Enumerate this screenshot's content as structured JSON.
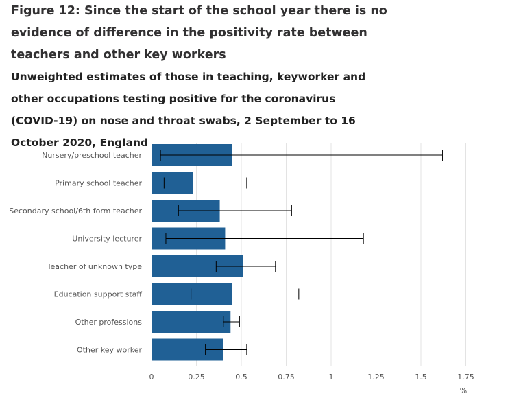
{
  "title": "Figure 12: Since the start of the school year there is no evidence of difference in the positivity rate between teachers and other key workers",
  "subtitle": "Unweighted estimates of those in teaching, keyworker and other occupations testing positive for the coronavirus (COVID-19) on nose and throat swabs, 2 September to 16 October 2020, England",
  "chart_data": {
    "type": "bar",
    "orientation": "horizontal",
    "categories": [
      "Nursery/preschool teacher",
      "Primary school teacher",
      "Secondary school/6th form teacher",
      "University lecturer",
      "Teacher of unknown type",
      "Education support staff",
      "Other professions",
      "Other key worker"
    ],
    "values": [
      0.45,
      0.23,
      0.38,
      0.41,
      0.51,
      0.45,
      0.44,
      0.4
    ],
    "lower": [
      0.05,
      0.07,
      0.15,
      0.08,
      0.36,
      0.22,
      0.4,
      0.3
    ],
    "upper": [
      1.62,
      0.53,
      0.78,
      1.18,
      0.69,
      0.82,
      0.49,
      0.53
    ],
    "xticks": [
      "0",
      "0.25",
      "0.5",
      "0.75",
      "1",
      "1.25",
      "1.5",
      "1.75"
    ],
    "xlabel": "%",
    "xlim": [
      0,
      1.75
    ],
    "grid": "vertical",
    "bar_color": "#206095",
    "grid_color": "#e3e3e3",
    "error_color": "#000000"
  }
}
